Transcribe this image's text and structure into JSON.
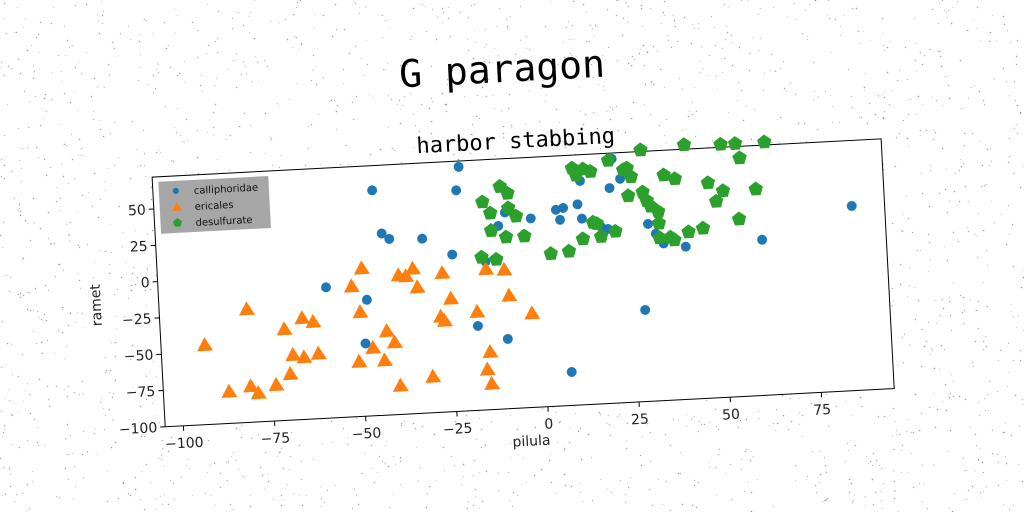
{
  "suptitle": "G paragon",
  "chart_data": {
    "type": "scatter",
    "title": "harbor stabbing",
    "xlabel": "pilula",
    "ylabel": "ramet",
    "xlim": [
      -105,
      95
    ],
    "ylim": [
      -100,
      72
    ],
    "xticks": [
      -100,
      -75,
      -50,
      -25,
      0,
      25,
      50,
      75
    ],
    "yticks": [
      -100,
      -75,
      -50,
      -25,
      0,
      25,
      50
    ],
    "grid": false,
    "legend": "top-left",
    "series": [
      {
        "name": "calliphoridae",
        "marker": "circle",
        "color": "#1f77b4",
        "points": [
          [
            -45,
            55
          ],
          [
            -21,
            68
          ],
          [
            -22,
            52
          ],
          [
            -43,
            25
          ],
          [
            -41,
            21
          ],
          [
            -32,
            20
          ],
          [
            -24,
            8
          ],
          [
            -15,
            2
          ],
          [
            -11,
            26
          ],
          [
            -2,
            30
          ],
          [
            -9,
            35
          ],
          [
            5,
            35
          ],
          [
            6,
            28
          ],
          [
            7,
            36
          ],
          [
            11,
            38
          ],
          [
            12,
            28
          ],
          [
            17,
            22
          ],
          [
            12,
            54
          ],
          [
            19,
            20
          ],
          [
            20,
            48
          ],
          [
            21,
            68
          ],
          [
            23,
            54
          ],
          [
            30,
            22
          ],
          [
            32,
            15
          ],
          [
            34,
            8
          ],
          [
            40,
            5
          ],
          [
            61,
            7
          ],
          [
            86,
            27
          ],
          [
            -59,
            -10
          ],
          [
            -48,
            -20
          ],
          [
            -49,
            -50
          ],
          [
            -18,
            -42
          ],
          [
            -10,
            -52
          ],
          [
            28,
            -37
          ],
          [
            7,
            -77
          ]
        ]
      },
      {
        "name": "ericales",
        "marker": "triangle",
        "color": "#ff7f0e",
        "points": [
          [
            -93,
            -45
          ],
          [
            -81,
            -22
          ],
          [
            -71,
            -37
          ],
          [
            -66,
            -30
          ],
          [
            -63,
            -33
          ],
          [
            -69,
            -55
          ],
          [
            -66,
            -57
          ],
          [
            -62,
            -55
          ],
          [
            -87,
            -78
          ],
          [
            -79,
            -80
          ],
          [
            -74,
            -75
          ],
          [
            -70,
            -68
          ],
          [
            -81,
            -75
          ],
          [
            -49,
            2
          ],
          [
            -52,
            -10
          ],
          [
            -50,
            -28
          ],
          [
            -47,
            -53
          ],
          [
            -43,
            -42
          ],
          [
            -41,
            -50
          ],
          [
            -44,
            -62
          ],
          [
            -51,
            -62
          ],
          [
            -40,
            -80
          ],
          [
            -31,
            -75
          ],
          [
            -39,
            -4
          ],
          [
            -35,
            0
          ],
          [
            -37,
            -5
          ],
          [
            -34,
            -13
          ],
          [
            -27,
            -4
          ],
          [
            -28,
            -34
          ],
          [
            -27,
            -37
          ],
          [
            -25,
            -22
          ],
          [
            -18,
            -32
          ],
          [
            -15,
            -3
          ],
          [
            -10,
            -4
          ],
          [
            -9,
            -22
          ],
          [
            -3,
            -35
          ],
          [
            -15,
            -60
          ],
          [
            -16,
            -72
          ],
          [
            -15,
            -82
          ]
        ]
      },
      {
        "name": "desulfurate",
        "marker": "pentagon",
        "color": "#2ca02c",
        "points": [
          [
            -10,
            53
          ],
          [
            -15,
            43
          ],
          [
            -8,
            48
          ],
          [
            -13,
            35
          ],
          [
            -8,
            38
          ],
          [
            -6,
            32
          ],
          [
            -13,
            23
          ],
          [
            -9,
            18
          ],
          [
            -4,
            18
          ],
          [
            -16,
            5
          ],
          [
            -12,
            3
          ],
          [
            3,
            5
          ],
          [
            8,
            6
          ],
          [
            12,
            14
          ],
          [
            15,
            25
          ],
          [
            17,
            15
          ],
          [
            16,
            24
          ],
          [
            10,
            63
          ],
          [
            13,
            62
          ],
          [
            11,
            58
          ],
          [
            15,
            60
          ],
          [
            20,
            67
          ],
          [
            24,
            60
          ],
          [
            26,
            55
          ],
          [
            25,
            42
          ],
          [
            29,
            44
          ],
          [
            30,
            38
          ],
          [
            31,
            34
          ],
          [
            33,
            30
          ],
          [
            35,
            55
          ],
          [
            38,
            52
          ],
          [
            41,
            75
          ],
          [
            29,
            73
          ],
          [
            25,
            61
          ],
          [
            33,
            12
          ],
          [
            36,
            12
          ],
          [
            37,
            10
          ],
          [
            41,
            15
          ],
          [
            45,
            17
          ],
          [
            47,
            48
          ],
          [
            49,
            35
          ],
          [
            51,
            42
          ],
          [
            55,
            74
          ],
          [
            56,
            64
          ],
          [
            60,
            42
          ],
          [
            63,
            74
          ],
          [
            51,
            74
          ],
          [
            55,
            22
          ],
          [
            33,
            22
          ],
          [
            21,
            18
          ]
        ]
      }
    ]
  }
}
